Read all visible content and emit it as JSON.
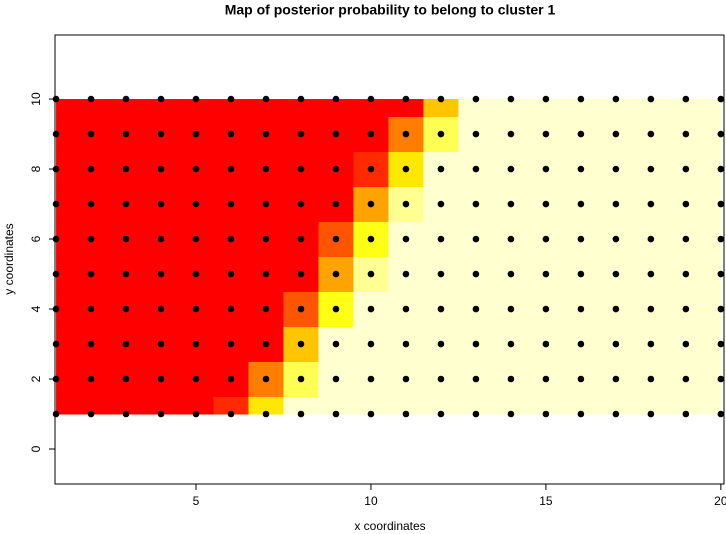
{
  "chart_data": {
    "type": "heatmap",
    "title": "Map of posterior probability to belong to cluster  1",
    "x_label": "x coordinates",
    "y_label": "y coordinates",
    "xlim": [
      0.97,
      20.09
    ],
    "ylim": [
      -1,
      11.83
    ],
    "xticks": [
      5,
      10,
      15,
      20
    ],
    "yticks": [
      0,
      2,
      4,
      6,
      8,
      10
    ],
    "x": [
      1,
      2,
      3,
      4,
      5,
      6,
      7,
      8,
      9,
      10,
      11,
      12,
      13,
      14,
      15,
      16,
      17,
      18,
      19,
      20
    ],
    "y": [
      1,
      2,
      3,
      4,
      5,
      6,
      7,
      8,
      9,
      10
    ],
    "z": [
      [
        0,
        0,
        0,
        0,
        0,
        0.1,
        0.6,
        1,
        1,
        1,
        1,
        1,
        1,
        1,
        1,
        1,
        1,
        1,
        1,
        1
      ],
      [
        0,
        0,
        0,
        0,
        0,
        0,
        0.3,
        0.8,
        1,
        1,
        1,
        1,
        1,
        1,
        1,
        1,
        1,
        1,
        1,
        1
      ],
      [
        0,
        0,
        0,
        0,
        0,
        0,
        0,
        0.5,
        1,
        1,
        1,
        1,
        1,
        1,
        1,
        1,
        1,
        1,
        1,
        1
      ],
      [
        0,
        0,
        0,
        0,
        0,
        0,
        0,
        0.2,
        0.7,
        1,
        1,
        1,
        1,
        1,
        1,
        1,
        1,
        1,
        1,
        1
      ],
      [
        0,
        0,
        0,
        0,
        0,
        0,
        0,
        0,
        0.4,
        0.9,
        1,
        1,
        1,
        1,
        1,
        1,
        1,
        1,
        1,
        1
      ],
      [
        0,
        0,
        0,
        0,
        0,
        0,
        0,
        0,
        0.2,
        0.7,
        1,
        1,
        1,
        1,
        1,
        1,
        1,
        1,
        1,
        1
      ],
      [
        0,
        0,
        0,
        0,
        0,
        0,
        0,
        0,
        0,
        0.4,
        0.9,
        1,
        1,
        1,
        1,
        1,
        1,
        1,
        1,
        1
      ],
      [
        0,
        0,
        0,
        0,
        0,
        0,
        0,
        0,
        0,
        0.1,
        0.6,
        1,
        1,
        1,
        1,
        1,
        1,
        1,
        1,
        1
      ],
      [
        0,
        0,
        0,
        0,
        0,
        0,
        0,
        0,
        0,
        0,
        0.3,
        0.8,
        1,
        1,
        1,
        1,
        1,
        1,
        1,
        1
      ],
      [
        0,
        0,
        0,
        0,
        0,
        0,
        0,
        0,
        0,
        0,
        0,
        0.5,
        1,
        1,
        1,
        1,
        1,
        1,
        1,
        1
      ]
    ],
    "palette": [
      "#ff0000",
      "#ff8c00",
      "#ffff00",
      "#ffffd0"
    ],
    "point_color": "#000000"
  }
}
